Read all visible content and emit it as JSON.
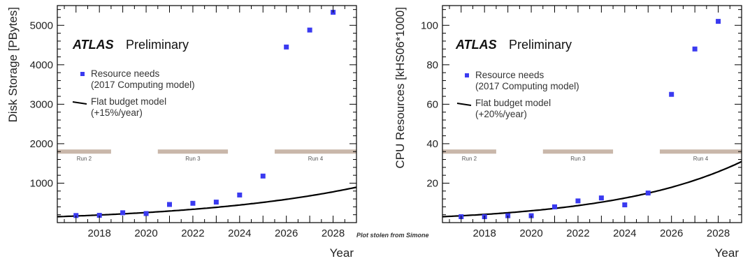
{
  "credit": "Plot stolen from Simone",
  "chart_data": [
    {
      "type": "scatter",
      "label_main": "ATLAS",
      "label_sub": "Preliminary",
      "xlabel": "Year",
      "ylabel": "Disk Storage [PBytes]",
      "xlim": [
        2016.2,
        2029.0
      ],
      "ylim": [
        0,
        5500
      ],
      "xticks": [
        2018,
        2020,
        2022,
        2024,
        2026,
        2028
      ],
      "yticks": [
        1000,
        2000,
        3000,
        4000,
        5000
      ],
      "legend": {
        "points_line1": "Resource needs",
        "points_line2": "(2017 Computing model)",
        "curve_line1": "Flat budget model",
        "curve_line2": "(+15%/year)"
      },
      "colors": {
        "points": "#3a3af0",
        "curve": "#000000",
        "run_band": "#c9b7aa"
      },
      "series": [
        {
          "name": "Resource needs",
          "x": [
            2017,
            2018,
            2019,
            2020,
            2021,
            2022,
            2023,
            2024,
            2025,
            2026,
            2027,
            2028
          ],
          "y": [
            180,
            185,
            250,
            230,
            460,
            490,
            520,
            700,
            1180,
            4450,
            4880,
            5330
          ]
        },
        {
          "name": "Flat budget model",
          "curve": {
            "x0": 2016.2,
            "y0": 150,
            "growth": 0.15
          }
        }
      ],
      "runs": [
        {
          "label": "Run 2",
          "start": 2016.2,
          "end": 2018.5,
          "level": 1800
        },
        {
          "label": "Run 3",
          "start": 2020.5,
          "end": 2023.5,
          "level": 1800
        },
        {
          "label": "Run 4",
          "start": 2025.5,
          "end": 2029.0,
          "level": 1800
        }
      ]
    },
    {
      "type": "scatter",
      "label_main": "ATLAS",
      "label_sub": "Preliminary",
      "xlabel": "Year",
      "ylabel": "CPU Resources [kHS06*1000]",
      "xlim": [
        2016.2,
        2029.0
      ],
      "ylim": [
        0,
        110
      ],
      "xticks": [
        2018,
        2020,
        2022,
        2024,
        2026,
        2028
      ],
      "yticks": [
        20,
        40,
        60,
        80,
        100
      ],
      "legend": {
        "points_line1": "Resource needs",
        "points_line2": "(2017 Computing model)",
        "curve_line1": "Flat budget model",
        "curve_line2": "(+20%/year)"
      },
      "colors": {
        "points": "#3a3af0",
        "curve": "#000000",
        "run_band": "#c9b7aa"
      },
      "series": [
        {
          "name": "Resource needs",
          "x": [
            2017,
            2018,
            2019,
            2020,
            2021,
            2022,
            2023,
            2024,
            2025,
            2026,
            2027,
            2028
          ],
          "y": [
            3,
            3,
            3.5,
            3.5,
            8,
            11,
            12.5,
            9,
            15,
            65,
            88,
            102
          ]
        },
        {
          "name": "Flat budget model",
          "curve": {
            "x0": 2016.2,
            "y0": 3,
            "growth": 0.2
          }
        }
      ],
      "runs": [
        {
          "label": "Run 2",
          "start": 2016.2,
          "end": 2018.5,
          "level": 36
        },
        {
          "label": "Run 3",
          "start": 2020.5,
          "end": 2023.5,
          "level": 36
        },
        {
          "label": "Run 4",
          "start": 2025.5,
          "end": 2029.0,
          "level": 36
        }
      ]
    }
  ]
}
